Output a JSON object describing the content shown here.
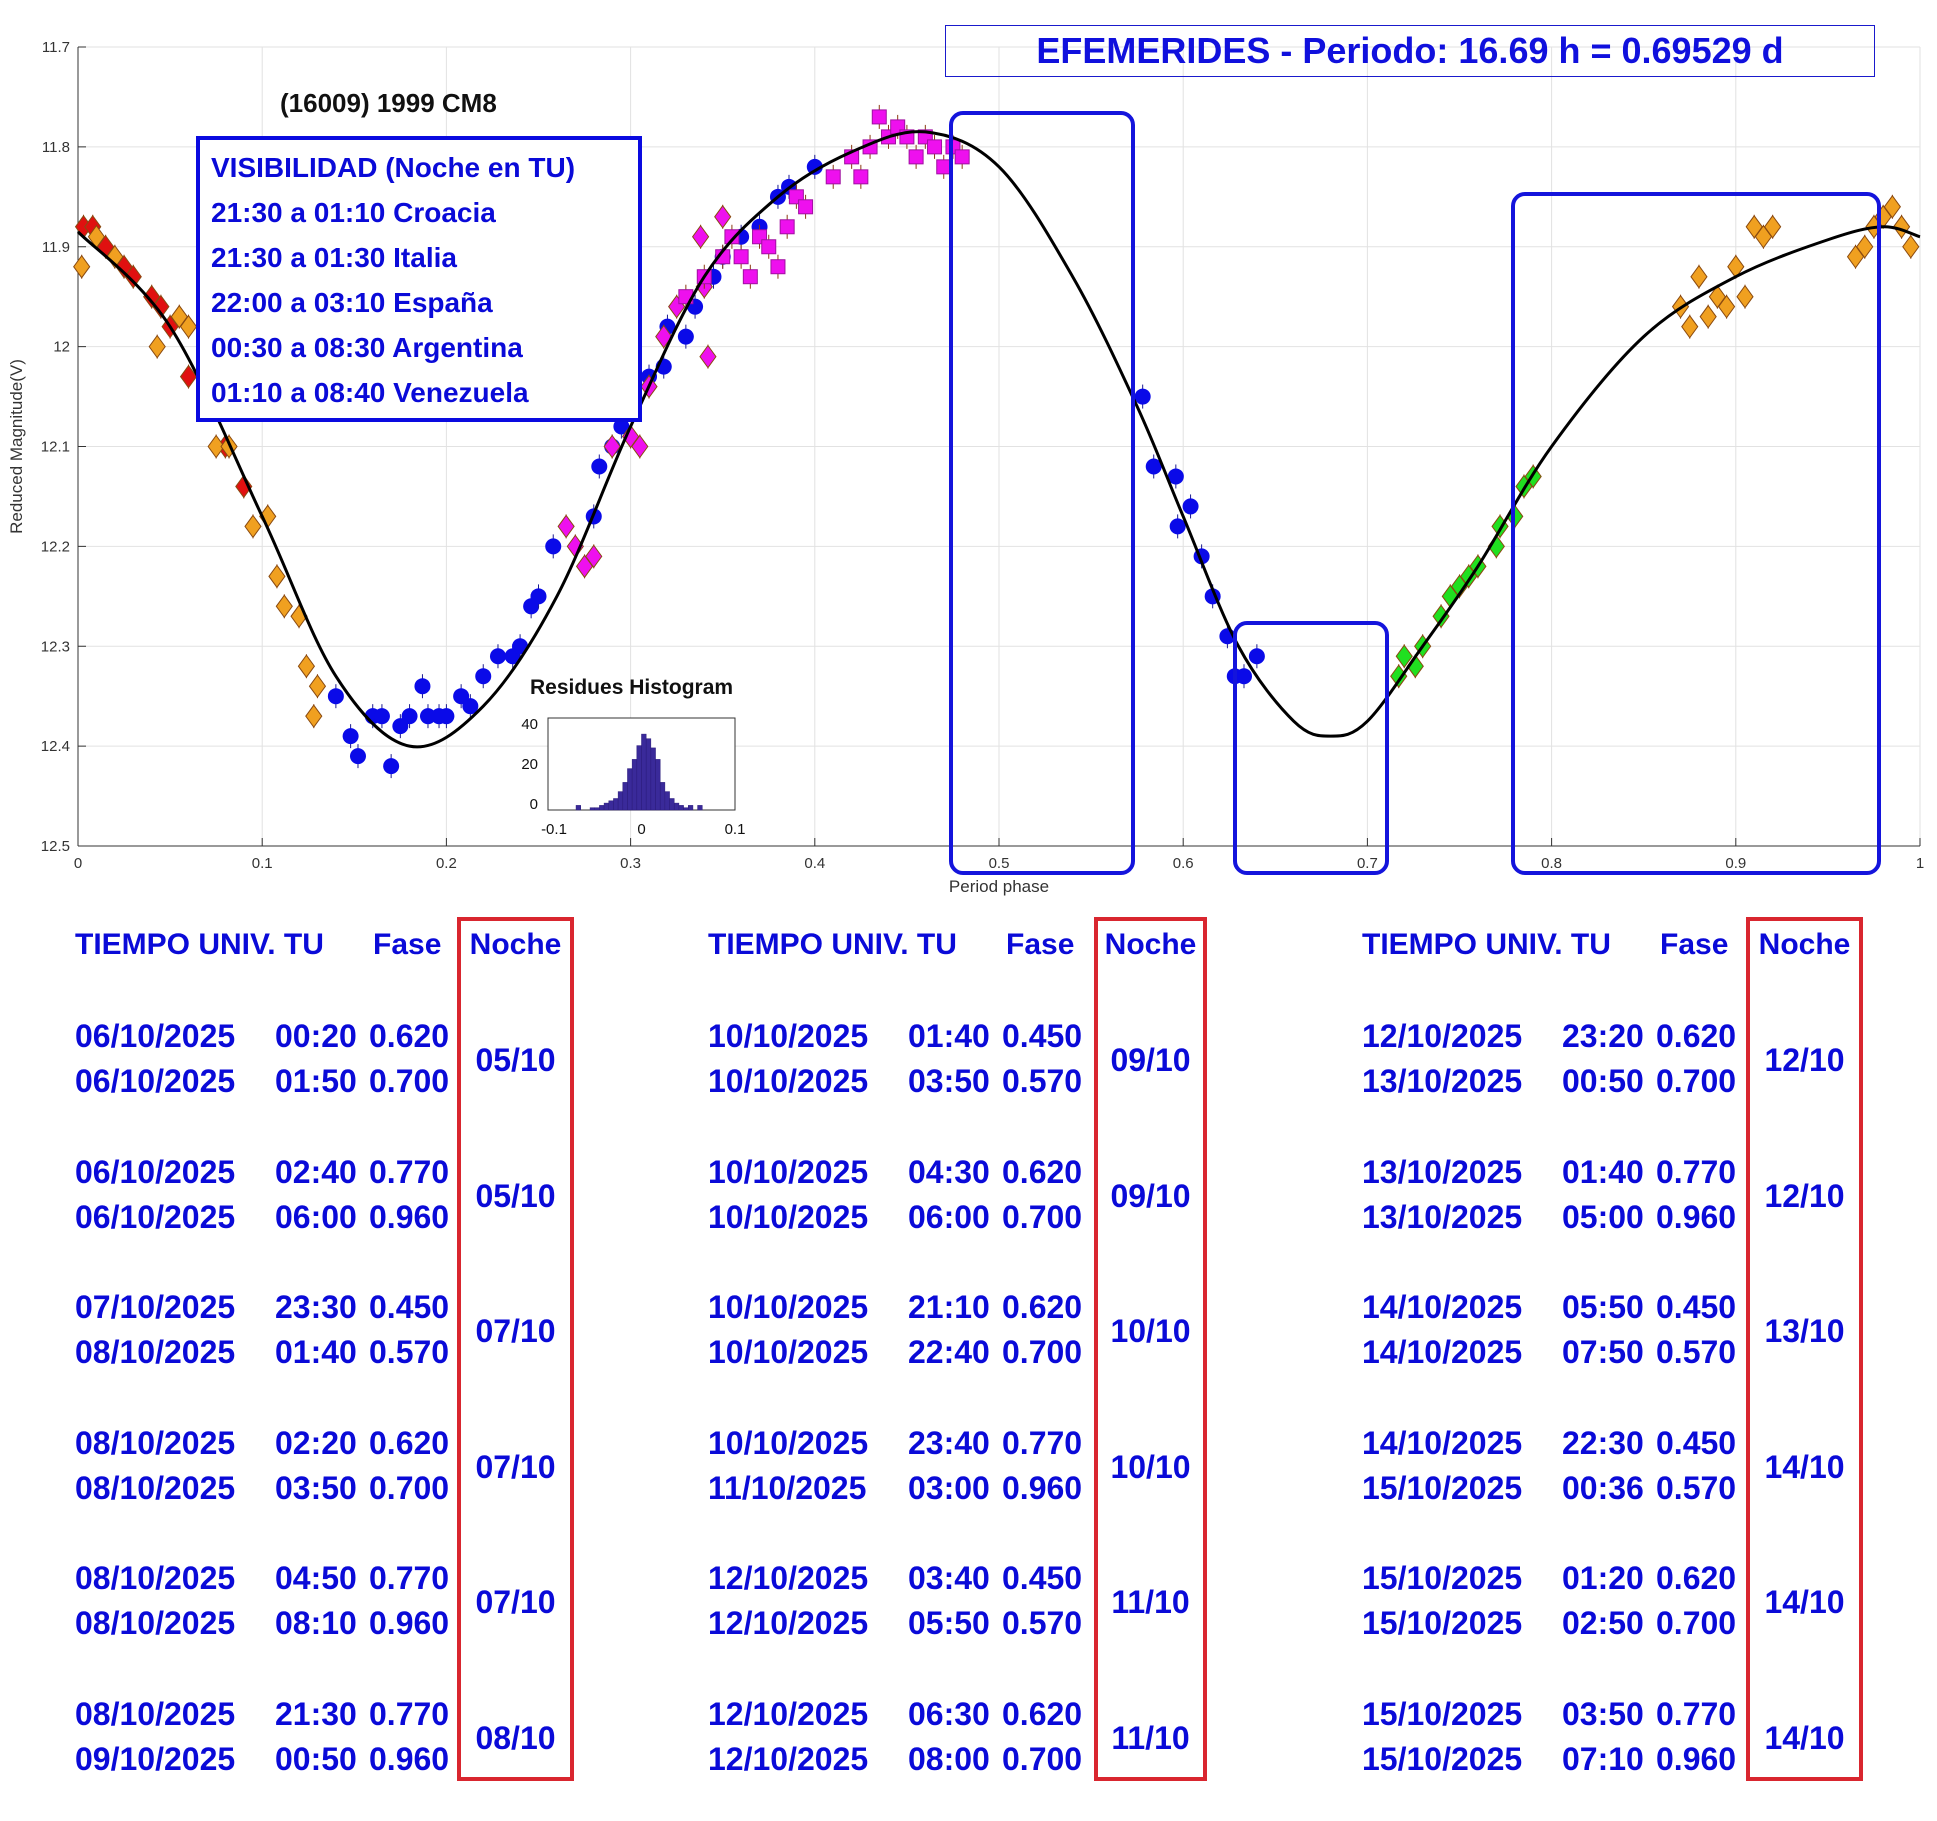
{
  "title": "EFEMERIDES - Periodo: 16.69 h = 0.69529 d",
  "object_name": "(16009) 1999 CM8",
  "visibility": {
    "heading": "VISIBILIDAD (Noche en TU)",
    "lines": [
      "21:30 a 01:10 Croacia",
      "21:30 a 01:30 Italia",
      "22:00 a 03:10 España",
      "00:30 a 08:30 Argentina",
      "01:10 a 08:40 Venezuela"
    ]
  },
  "colors": {
    "text_blue": "#0a0ad8",
    "highlight_box": "#1414dc",
    "noche_box": "#d9262f",
    "fit_curve": "#000000"
  },
  "chart_data": {
    "type": "scatter",
    "title": "(16009) 1999 CM8",
    "xlabel": "Period phase",
    "ylabel": "Reduced Magnitude(V)",
    "xlim": [
      0,
      1
    ],
    "ylim": [
      11.7,
      12.5
    ],
    "y_inverted": true,
    "grid": true,
    "xticks": [
      "0",
      "0.1",
      "0.2",
      "0.3",
      "0.4",
      "0.5",
      "0.6",
      "0.7",
      "0.8",
      "0.9",
      "1"
    ],
    "yticks": [
      "11.7",
      "11.8",
      "11.9",
      "12",
      "12.1",
      "12.2",
      "12.3",
      "12.4",
      "12.5"
    ],
    "fit_curve": [
      [
        0,
        11.885
      ],
      [
        0.05,
        11.98
      ],
      [
        0.1,
        12.17
      ],
      [
        0.14,
        12.33
      ],
      [
        0.18,
        12.4
      ],
      [
        0.22,
        12.36
      ],
      [
        0.26,
        12.25
      ],
      [
        0.3,
        12.08
      ],
      [
        0.34,
        11.93
      ],
      [
        0.38,
        11.85
      ],
      [
        0.42,
        11.805
      ],
      [
        0.46,
        11.785
      ],
      [
        0.5,
        11.82
      ],
      [
        0.54,
        11.93
      ],
      [
        0.575,
        12.06
      ],
      [
        0.6,
        12.17
      ],
      [
        0.63,
        12.3
      ],
      [
        0.66,
        12.375
      ],
      [
        0.68,
        12.39
      ],
      [
        0.7,
        12.375
      ],
      [
        0.73,
        12.3
      ],
      [
        0.76,
        12.22
      ],
      [
        0.8,
        12.1
      ],
      [
        0.85,
        11.99
      ],
      [
        0.9,
        11.93
      ],
      [
        0.95,
        11.893
      ],
      [
        0.98,
        11.88
      ],
      [
        1,
        11.89
      ]
    ],
    "series": [
      {
        "name": "red",
        "marker": "diamond",
        "color": "#e01010",
        "points": [
          [
            0.003,
            11.88
          ],
          [
            0.008,
            11.88
          ],
          [
            0.015,
            11.9
          ],
          [
            0.025,
            11.92
          ],
          [
            0.03,
            11.93
          ],
          [
            0.04,
            11.95
          ],
          [
            0.045,
            11.96
          ],
          [
            0.05,
            11.98
          ],
          [
            0.06,
            12.03
          ],
          [
            0.07,
            12.06
          ],
          [
            0.08,
            12.1
          ],
          [
            0.09,
            12.14
          ]
        ]
      },
      {
        "name": "orange",
        "marker": "diamond",
        "color": "#f0a020",
        "points": [
          [
            0.002,
            11.92
          ],
          [
            0.01,
            11.89
          ],
          [
            0.02,
            11.91
          ],
          [
            0.043,
            12.0
          ],
          [
            0.055,
            11.97
          ],
          [
            0.06,
            11.98
          ],
          [
            0.075,
            12.1
          ],
          [
            0.082,
            12.1
          ],
          [
            0.095,
            12.18
          ],
          [
            0.103,
            12.17
          ],
          [
            0.108,
            12.23
          ],
          [
            0.112,
            12.26
          ],
          [
            0.12,
            12.27
          ],
          [
            0.124,
            12.32
          ],
          [
            0.13,
            12.34
          ],
          [
            0.128,
            12.37
          ],
          [
            0.87,
            11.96
          ],
          [
            0.875,
            11.98
          ],
          [
            0.88,
            11.93
          ],
          [
            0.885,
            11.97
          ],
          [
            0.89,
            11.95
          ],
          [
            0.895,
            11.96
          ],
          [
            0.9,
            11.92
          ],
          [
            0.905,
            11.95
          ],
          [
            0.91,
            11.88
          ],
          [
            0.915,
            11.89
          ],
          [
            0.92,
            11.88
          ],
          [
            0.965,
            11.91
          ],
          [
            0.97,
            11.9
          ],
          [
            0.975,
            11.88
          ],
          [
            0.98,
            11.87
          ],
          [
            0.985,
            11.86
          ],
          [
            0.99,
            11.88
          ],
          [
            0.995,
            11.9
          ]
        ]
      },
      {
        "name": "blue",
        "marker": "circle",
        "color": "#0a0ae8",
        "points": [
          [
            0.14,
            12.35
          ],
          [
            0.148,
            12.39
          ],
          [
            0.152,
            12.41
          ],
          [
            0.16,
            12.37
          ],
          [
            0.165,
            12.37
          ],
          [
            0.17,
            12.42
          ],
          [
            0.175,
            12.38
          ],
          [
            0.18,
            12.37
          ],
          [
            0.187,
            12.34
          ],
          [
            0.19,
            12.37
          ],
          [
            0.196,
            12.37
          ],
          [
            0.2,
            12.37
          ],
          [
            0.208,
            12.35
          ],
          [
            0.213,
            12.36
          ],
          [
            0.22,
            12.33
          ],
          [
            0.228,
            12.31
          ],
          [
            0.236,
            12.31
          ],
          [
            0.24,
            12.3
          ],
          [
            0.246,
            12.26
          ],
          [
            0.25,
            12.25
          ],
          [
            0.258,
            12.2
          ],
          [
            0.28,
            12.17
          ],
          [
            0.283,
            12.12
          ],
          [
            0.29,
            12.1
          ],
          [
            0.295,
            12.08
          ],
          [
            0.3,
            12.05
          ],
          [
            0.31,
            12.03
          ],
          [
            0.318,
            12.02
          ],
          [
            0.32,
            11.98
          ],
          [
            0.33,
            11.99
          ],
          [
            0.335,
            11.96
          ],
          [
            0.345,
            11.93
          ],
          [
            0.35,
            11.91
          ],
          [
            0.36,
            11.89
          ],
          [
            0.37,
            11.88
          ],
          [
            0.38,
            11.85
          ],
          [
            0.386,
            11.84
          ],
          [
            0.4,
            11.82
          ],
          [
            0.578,
            12.05
          ],
          [
            0.584,
            12.12
          ],
          [
            0.596,
            12.13
          ],
          [
            0.597,
            12.18
          ],
          [
            0.604,
            12.16
          ],
          [
            0.61,
            12.21
          ],
          [
            0.616,
            12.25
          ],
          [
            0.624,
            12.29
          ],
          [
            0.628,
            12.33
          ],
          [
            0.633,
            12.33
          ],
          [
            0.64,
            12.31
          ]
        ]
      },
      {
        "name": "magenta-diamond",
        "marker": "diamond",
        "color": "#ee10ee",
        "points": [
          [
            0.265,
            12.18
          ],
          [
            0.27,
            12.2
          ],
          [
            0.275,
            12.22
          ],
          [
            0.28,
            12.21
          ],
          [
            0.29,
            12.1
          ],
          [
            0.3,
            12.09
          ],
          [
            0.305,
            12.1
          ],
          [
            0.31,
            12.04
          ],
          [
            0.318,
            11.99
          ],
          [
            0.325,
            11.96
          ],
          [
            0.34,
            11.94
          ],
          [
            0.342,
            12.01
          ],
          [
            0.338,
            11.89
          ],
          [
            0.35,
            11.87
          ]
        ]
      },
      {
        "name": "magenta-square",
        "marker": "square",
        "color": "#ee10ee",
        "points": [
          [
            0.33,
            11.95
          ],
          [
            0.34,
            11.93
          ],
          [
            0.35,
            11.91
          ],
          [
            0.355,
            11.89
          ],
          [
            0.36,
            11.91
          ],
          [
            0.365,
            11.93
          ],
          [
            0.37,
            11.89
          ],
          [
            0.375,
            11.9
          ],
          [
            0.38,
            11.92
          ],
          [
            0.385,
            11.88
          ],
          [
            0.39,
            11.85
          ],
          [
            0.395,
            11.86
          ],
          [
            0.41,
            11.83
          ],
          [
            0.42,
            11.81
          ],
          [
            0.425,
            11.83
          ],
          [
            0.43,
            11.8
          ],
          [
            0.435,
            11.77
          ],
          [
            0.44,
            11.79
          ],
          [
            0.445,
            11.78
          ],
          [
            0.45,
            11.79
          ],
          [
            0.455,
            11.81
          ],
          [
            0.46,
            11.79
          ],
          [
            0.465,
            11.8
          ],
          [
            0.47,
            11.82
          ],
          [
            0.475,
            11.8
          ],
          [
            0.48,
            11.81
          ]
        ]
      },
      {
        "name": "green",
        "marker": "diamond",
        "color": "#20e020",
        "points": [
          [
            0.717,
            12.33
          ],
          [
            0.72,
            12.31
          ],
          [
            0.726,
            12.32
          ],
          [
            0.73,
            12.3
          ],
          [
            0.74,
            12.27
          ],
          [
            0.745,
            12.25
          ],
          [
            0.75,
            12.24
          ],
          [
            0.755,
            12.23
          ],
          [
            0.76,
            12.22
          ],
          [
            0.77,
            12.2
          ],
          [
            0.772,
            12.18
          ],
          [
            0.78,
            12.17
          ],
          [
            0.785,
            12.14
          ],
          [
            0.79,
            12.13
          ]
        ]
      }
    ],
    "highlight_phase_ranges": [
      [
        0.47,
        0.57
      ],
      [
        0.63,
        0.715
      ],
      [
        0.78,
        0.98
      ]
    ],
    "histogram": {
      "title": "Residues Histogram",
      "xlim": [
        -0.1,
        0.1
      ],
      "ylim": [
        0,
        40
      ],
      "xticks": [
        "-0.1",
        "0",
        "0.1"
      ],
      "yticks": [
        "0",
        "20",
        "40"
      ],
      "bin_start": -0.07,
      "bin_width": 0.005,
      "counts": [
        2,
        0,
        0,
        1,
        1,
        2,
        3,
        4,
        5,
        8,
        12,
        18,
        22,
        28,
        33,
        31,
        27,
        22,
        12,
        8,
        5,
        3,
        2,
        1,
        2,
        0,
        2
      ]
    }
  },
  "tables": [
    {
      "header": {
        "time": "TIEMPO UNIV. TU",
        "phase": "Fase",
        "night": "Noche"
      },
      "groups": [
        {
          "rows": [
            {
              "date": "06/10/2025",
              "time": "00:20",
              "phase": "0.620"
            },
            {
              "date": "06/10/2025",
              "time": "01:50",
              "phase": "0.700"
            }
          ],
          "night": "05/10"
        },
        {
          "rows": [
            {
              "date": "06/10/2025",
              "time": "02:40",
              "phase": "0.770"
            },
            {
              "date": "06/10/2025",
              "time": "06:00",
              "phase": "0.960"
            }
          ],
          "night": "05/10"
        },
        {
          "rows": [
            {
              "date": "07/10/2025",
              "time": "23:30",
              "phase": "0.450"
            },
            {
              "date": "08/10/2025",
              "time": "01:40",
              "phase": "0.570"
            }
          ],
          "night": "07/10"
        },
        {
          "rows": [
            {
              "date": "08/10/2025",
              "time": "02:20",
              "phase": "0.620"
            },
            {
              "date": "08/10/2025",
              "time": "03:50",
              "phase": "0.700"
            }
          ],
          "night": "07/10"
        },
        {
          "rows": [
            {
              "date": "08/10/2025",
              "time": "04:50",
              "phase": "0.770"
            },
            {
              "date": "08/10/2025",
              "time": "08:10",
              "phase": "0.960"
            }
          ],
          "night": "07/10"
        },
        {
          "rows": [
            {
              "date": "08/10/2025",
              "time": "21:30",
              "phase": "0.770"
            },
            {
              "date": "09/10/2025",
              "time": "00:50",
              "phase": "0.960"
            }
          ],
          "night": "08/10"
        }
      ]
    },
    {
      "header": {
        "time": "TIEMPO UNIV. TU",
        "phase": "Fase",
        "night": "Noche"
      },
      "groups": [
        {
          "rows": [
            {
              "date": "10/10/2025",
              "time": "01:40",
              "phase": "0.450"
            },
            {
              "date": "10/10/2025",
              "time": "03:50",
              "phase": "0.570"
            }
          ],
          "night": "09/10"
        },
        {
          "rows": [
            {
              "date": "10/10/2025",
              "time": "04:30",
              "phase": "0.620"
            },
            {
              "date": "10/10/2025",
              "time": "06:00",
              "phase": "0.700"
            }
          ],
          "night": "09/10"
        },
        {
          "rows": [
            {
              "date": "10/10/2025",
              "time": "21:10",
              "phase": "0.620"
            },
            {
              "date": "10/10/2025",
              "time": "22:40",
              "phase": "0.700"
            }
          ],
          "night": "10/10"
        },
        {
          "rows": [
            {
              "date": "10/10/2025",
              "time": "23:40",
              "phase": "0.770"
            },
            {
              "date": "11/10/2025",
              "time": "03:00",
              "phase": "0.960"
            }
          ],
          "night": "10/10"
        },
        {
          "rows": [
            {
              "date": "12/10/2025",
              "time": "03:40",
              "phase": "0.450"
            },
            {
              "date": "12/10/2025",
              "time": "05:50",
              "phase": "0.570"
            }
          ],
          "night": "11/10"
        },
        {
          "rows": [
            {
              "date": "12/10/2025",
              "time": "06:30",
              "phase": "0.620"
            },
            {
              "date": "12/10/2025",
              "time": "08:00",
              "phase": "0.700"
            }
          ],
          "night": "11/10"
        }
      ]
    },
    {
      "header": {
        "time": "TIEMPO UNIV. TU",
        "phase": "Fase",
        "night": "Noche"
      },
      "groups": [
        {
          "rows": [
            {
              "date": "12/10/2025",
              "time": "23:20",
              "phase": "0.620"
            },
            {
              "date": "13/10/2025",
              "time": "00:50",
              "phase": "0.700"
            }
          ],
          "night": "12/10"
        },
        {
          "rows": [
            {
              "date": "13/10/2025",
              "time": "01:40",
              "phase": "0.770"
            },
            {
              "date": "13/10/2025",
              "time": "05:00",
              "phase": "0.960"
            }
          ],
          "night": "12/10"
        },
        {
          "rows": [
            {
              "date": "14/10/2025",
              "time": "05:50",
              "phase": "0.450"
            },
            {
              "date": "14/10/2025",
              "time": "07:50",
              "phase": "0.570"
            }
          ],
          "night": "13/10"
        },
        {
          "rows": [
            {
              "date": "14/10/2025",
              "time": "22:30",
              "phase": "0.450"
            },
            {
              "date": "15/10/2025",
              "time": "00:36",
              "phase": "0.570"
            }
          ],
          "night": "14/10"
        },
        {
          "rows": [
            {
              "date": "15/10/2025",
              "time": "01:20",
              "phase": "0.620"
            },
            {
              "date": "15/10/2025",
              "time": "02:50",
              "phase": "0.700"
            }
          ],
          "night": "14/10"
        },
        {
          "rows": [
            {
              "date": "15/10/2025",
              "time": "03:50",
              "phase": "0.770"
            },
            {
              "date": "15/10/2025",
              "time": "07:10",
              "phase": "0.960"
            }
          ],
          "night": "14/10"
        }
      ]
    }
  ]
}
